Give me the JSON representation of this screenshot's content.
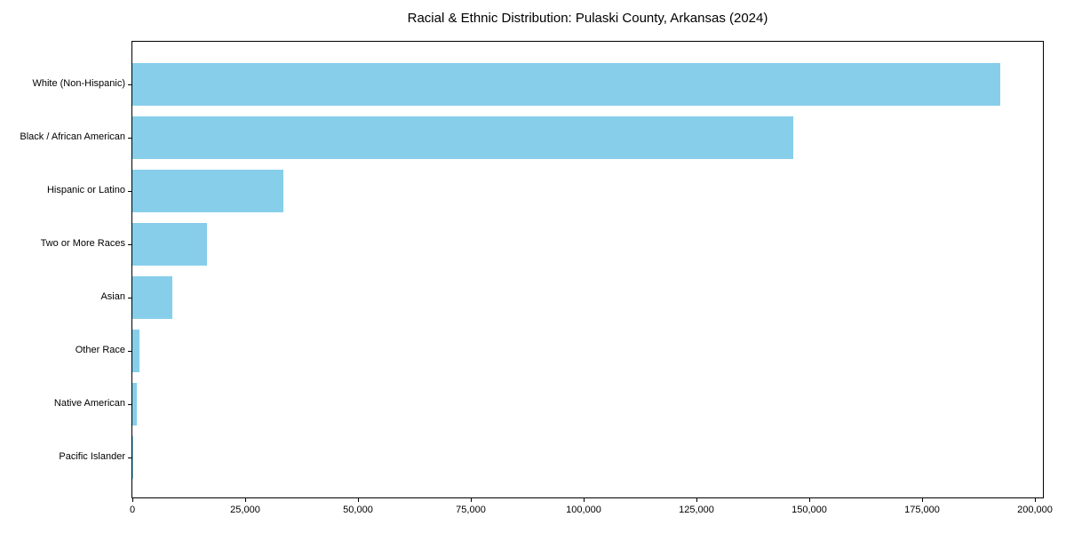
{
  "chart_data": {
    "type": "bar",
    "orientation": "horizontal",
    "title": "Racial & Ethnic Distribution: Pulaski County, Arkansas (2024)",
    "xlabel": "",
    "ylabel": "",
    "categories": [
      "White (Non-Hispanic)",
      "Black / African American",
      "Hispanic or Latino",
      "Two or More Races",
      "Asian",
      "Other Race",
      "Native American",
      "Pacific Islander"
    ],
    "values": [
      192300,
      146500,
      33500,
      16500,
      8900,
      1600,
      900,
      200
    ],
    "xlim": [
      0,
      202200
    ],
    "x_ticks": [
      0,
      25000,
      50000,
      75000,
      100000,
      125000,
      150000,
      175000,
      200000
    ],
    "x_tick_labels": [
      "0",
      "25,000",
      "50,000",
      "75,000",
      "100,000",
      "125,000",
      "150,000",
      "175,000",
      "200,000"
    ],
    "bar_color": "#87CEEB",
    "text_color": "#000000",
    "grid": false,
    "legend": false
  }
}
